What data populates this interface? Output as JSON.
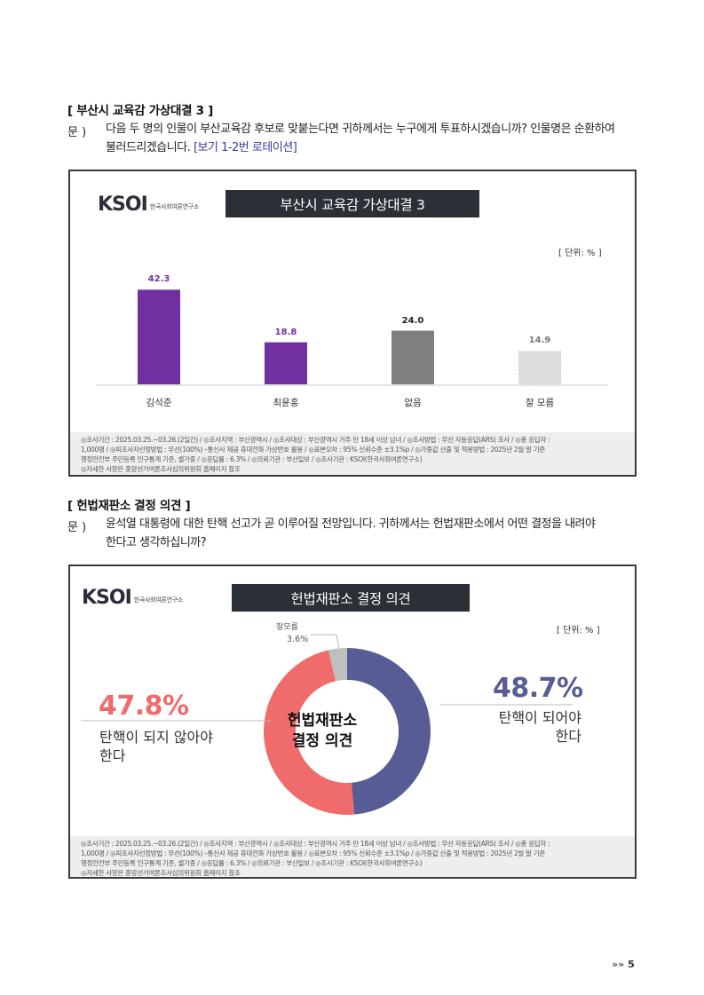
{
  "section1": {
    "title": "[ 부산시 교육감 가상대결 3 ]",
    "q_label": "문 )",
    "q_line1": "다음 두 명의 인물이 부산교육감 후보로 맞붙는다면 귀하께서는 누구에게 투표하시겠습니까? 인물명은 순환하여",
    "q_line2": "불러드리겠습니다. ",
    "q_note": "[보기 1-2번 로테이션]"
  },
  "chart1": {
    "logo_text": "KSOI",
    "logo_sub": "한국사회여론연구소",
    "title": "부산시 교육감 가상대결 3",
    "unit": "[ 단위: % ]",
    "footer_line1": "◎조사기간 : 2025.03.25.~03.26.(2일간) / ◎조사지역 : 부산광역시 / ◎조사대상 : 부산광역시 거주 만 18세 이상 남녀 / ◎조사방법 : 무선 자동응답(ARS) 조사 / ◎총 응답자 :",
    "footer_line2": "1,000명 / ◎피조사자선정방법 : 무선(100%) –통신사 제공 휴대전화 가상번호 활용 / ◎표본오차 : 95% 신뢰수준 ±3.1%p / ◎가중값 산출 및 적용방법 : 2025년 2월 말 기준",
    "footer_line3": "행정안전부 주민등록 인구통계 기준, 셀가중 / ◎응답률 : 6.3% / ◎의뢰기관 : 부산일보 / ◎조사기관 : KSOI(한국사회여론연구소)",
    "footer_line4": "◎자세한 사항은 중앙선거여론조사심의위원회 홈페이지 참조",
    "colors": {
      "bar1": "#7030a0",
      "bar2": "#7030a0",
      "bar3": "#7f7f7f",
      "bar4": "#cccccc"
    }
  },
  "section2": {
    "title": "[ 헌법재판소 결정 의견 ]",
    "q_label": "문 )",
    "q_line1": "윤석열 대통령에 대한 탄핵 선고가 곧 이루어질 전망입니다. 귀하께서는 헌법재판소에서 어떤 결정을 내려야",
    "q_line2": "한다고 생각하십니까?"
  },
  "chart2": {
    "logo_text": "KSOI",
    "logo_sub": "한국사회여론연구소",
    "title": "헌법재판소 결정 의견",
    "unit": "[ 단위: % ]",
    "center_line1": "헌법재판소",
    "center_line2": "결정 의견",
    "left_value": "47.8%",
    "left_label1": "탄핵이 되지 않아야",
    "left_label2": "한다",
    "right_value": "48.7%",
    "right_label1": "탄핵이 되어야",
    "right_label2": "한다",
    "top_label": "잘모름",
    "top_value": "3.6%",
    "colors": {
      "impeach": "#575d94",
      "not_impeach": "#f06b6b",
      "unknown": "#bfbfbf"
    },
    "footer_line1": "◎조사기간 : 2025.03.25.~03.26.(2일간) / ◎조사지역 : 부산광역시 / ◎조사대상 : 부산광역시 거주 만 18세 이상 남녀 / ◎조사방법 : 무선 자동응답(ARS) 조사 / ◎총 응답자 :",
    "footer_line2": "1,000명 / ◎피조사자선정방법 : 무선(100%) –통신사 제공 휴대전화 가상번호 활용 / ◎표본오차 : 95% 신뢰수준 ±3.1%p / ◎가중값 산출 및 적용방법 : 2025년 2월 말 기준",
    "footer_line3": "행정안전부 주민등록 인구통계 기준, 셀가중 / ◎응답률 : 6.3% / ◎의뢰기관 : 부산일보 / ◎조사기관 : KSOI(한국사회여론연구소)",
    "footer_line4": "◎자세한 사항은 중앙선거여론조사심의위원회 홈페이지 참조"
  },
  "page": {
    "arrows": "»»",
    "number": "5"
  },
  "chart_data": [
    {
      "type": "bar",
      "title": "부산시 교육감 가상대결 3",
      "categories": [
        "김석준",
        "최윤홍",
        "없음",
        "잘 모름"
      ],
      "values": [
        42.3,
        18.8,
        24.0,
        14.9
      ],
      "value_labels": [
        "42.3",
        "18.8",
        "24.0",
        "14.9"
      ],
      "ylim": [
        0,
        50
      ],
      "unit": "[ 단위: % ]"
    },
    {
      "type": "pie",
      "title": "헌법재판소 결정 의견",
      "categories": [
        "탄핵이 되어야 한다",
        "탄핵이 되지 않아야 한다",
        "잘모름"
      ],
      "values": [
        48.7,
        47.8,
        3.6
      ]
    }
  ]
}
